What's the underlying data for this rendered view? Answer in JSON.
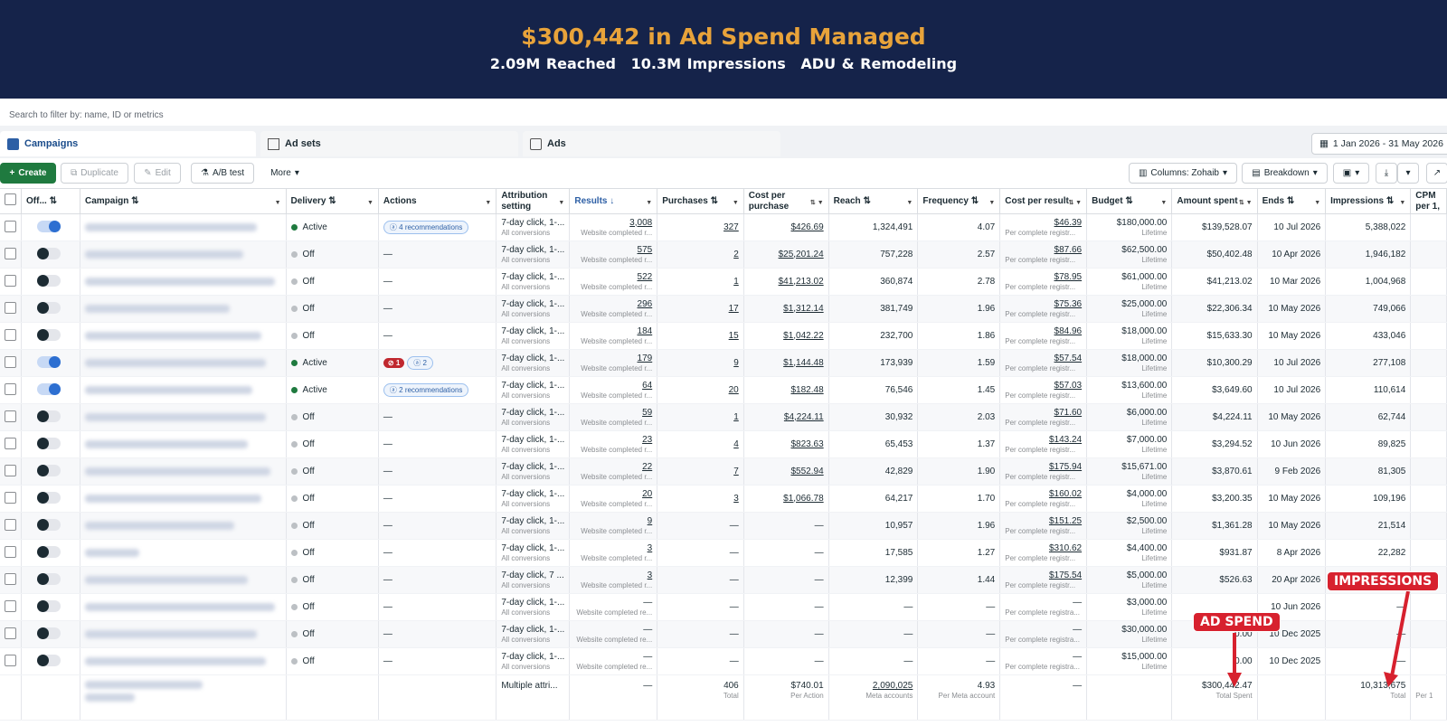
{
  "banner": {
    "title": "$300,442 in Ad Spend Managed",
    "reached": "2.09M Reached",
    "impressions": "10.3M Impressions",
    "niche": "ADU & Remodeling"
  },
  "filter": {
    "placeholder": "Search to filter by: name, ID or metrics"
  },
  "tabs": {
    "campaigns": "Campaigns",
    "adsets": "Ad sets",
    "ads": "Ads"
  },
  "date_range": "1 Jan 2026 - 31 May 2026",
  "toolbar": {
    "create": "Create",
    "duplicate": "Duplicate",
    "edit": "Edit",
    "abtest": "A/B test",
    "more": "More",
    "columns": "Columns: Zohaib",
    "breakdown": "Breakdown"
  },
  "columns": {
    "off": "Off...",
    "campaign": "Campaign",
    "delivery": "Delivery",
    "actions": "Actions",
    "attribution": "Attribution setting",
    "results": "Results",
    "purchases": "Purchases",
    "cpp": "Cost per purchase",
    "reach": "Reach",
    "frequency": "Frequency",
    "cpr": "Cost per result",
    "budget": "Budget",
    "spent": "Amount spent",
    "ends": "Ends",
    "impressions": "Impressions",
    "cpm": "CPM per 1,"
  },
  "common": {
    "all_conversions": "All conversions",
    "website_completed": "Website completed r...",
    "website_completed_re": "Website completed re...",
    "per_complete": "Per complete registr...",
    "per_complete_a": "Per complete registra...",
    "lifetime": "Lifetime",
    "dash": "—"
  },
  "rows": [
    {
      "on": true,
      "status": "Active",
      "action": "4 recommendations",
      "attr": "7-day click, 1-...",
      "results": "3,008",
      "purch": "327",
      "cpp": "$426.69",
      "reach": "1,324,491",
      "freq": "4.07",
      "cpr": "$46.39",
      "budget": "$180,000.00",
      "spent": "$139,528.07",
      "ends": "10 Jul 2026",
      "impr": "5,388,022"
    },
    {
      "on": false,
      "status": "Off",
      "action": "",
      "attr": "7-day click, 1-...",
      "results": "575",
      "purch": "2",
      "cpp": "$25,201.24",
      "reach": "757,228",
      "freq": "2.57",
      "cpr": "$87.66",
      "budget": "$62,500.00",
      "spent": "$50,402.48",
      "ends": "10 Apr 2026",
      "impr": "1,946,182"
    },
    {
      "on": false,
      "status": "Off",
      "action": "",
      "attr": "7-day click, 1-...",
      "results": "522",
      "purch": "1",
      "cpp": "$41,213.02",
      "reach": "360,874",
      "freq": "2.78",
      "cpr": "$78.95",
      "budget": "$61,000.00",
      "spent": "$41,213.02",
      "ends": "10 Mar 2026",
      "impr": "1,004,968"
    },
    {
      "on": false,
      "status": "Off",
      "action": "",
      "attr": "7-day click, 1-...",
      "results": "296",
      "purch": "17",
      "cpp": "$1,312.14",
      "reach": "381,749",
      "freq": "1.96",
      "cpr": "$75.36",
      "budget": "$25,000.00",
      "spent": "$22,306.34",
      "ends": "10 May 2026",
      "impr": "749,066"
    },
    {
      "on": false,
      "status": "Off",
      "action": "",
      "attr": "7-day click, 1-...",
      "results": "184",
      "purch": "15",
      "cpp": "$1,042.22",
      "reach": "232,700",
      "freq": "1.86",
      "cpr": "$84.96",
      "budget": "$18,000.00",
      "spent": "$15,633.30",
      "ends": "10 May 2026",
      "impr": "433,046"
    },
    {
      "on": true,
      "status": "Active",
      "action": "err",
      "attr": "7-day click, 1-...",
      "results": "179",
      "purch": "9",
      "cpp": "$1,144.48",
      "reach": "173,939",
      "freq": "1.59",
      "cpr": "$57.54",
      "budget": "$18,000.00",
      "spent": "$10,300.29",
      "ends": "10 Jul 2026",
      "impr": "277,108"
    },
    {
      "on": true,
      "status": "Active",
      "action": "2 recommendations",
      "attr": "7-day click, 1-...",
      "results": "64",
      "purch": "20",
      "cpp": "$182.48",
      "reach": "76,546",
      "freq": "1.45",
      "cpr": "$57.03",
      "budget": "$13,600.00",
      "spent": "$3,649.60",
      "ends": "10 Jul 2026",
      "impr": "110,614"
    },
    {
      "on": false,
      "status": "Off",
      "action": "",
      "attr": "7-day click, 1-...",
      "results": "59",
      "purch": "1",
      "cpp": "$4,224.11",
      "reach": "30,932",
      "freq": "2.03",
      "cpr": "$71.60",
      "budget": "$6,000.00",
      "spent": "$4,224.11",
      "ends": "10 May 2026",
      "impr": "62,744"
    },
    {
      "on": false,
      "status": "Off",
      "action": "",
      "attr": "7-day click, 1-...",
      "results": "23",
      "purch": "4",
      "cpp": "$823.63",
      "reach": "65,453",
      "freq": "1.37",
      "cpr": "$143.24",
      "budget": "$7,000.00",
      "spent": "$3,294.52",
      "ends": "10 Jun 2026",
      "impr": "89,825"
    },
    {
      "on": false,
      "status": "Off",
      "action": "",
      "attr": "7-day click, 1-...",
      "results": "22",
      "purch": "7",
      "cpp": "$552.94",
      "reach": "42,829",
      "freq": "1.90",
      "cpr": "$175.94",
      "budget": "$15,671.00",
      "spent": "$3,870.61",
      "ends": "9 Feb 2026",
      "impr": "81,305"
    },
    {
      "on": false,
      "status": "Off",
      "action": "",
      "attr": "7-day click, 1-...",
      "results": "20",
      "purch": "3",
      "cpp": "$1,066.78",
      "reach": "64,217",
      "freq": "1.70",
      "cpr": "$160.02",
      "budget": "$4,000.00",
      "spent": "$3,200.35",
      "ends": "10 May 2026",
      "impr": "109,196"
    },
    {
      "on": false,
      "status": "Off",
      "action": "",
      "attr": "7-day click, 1-...",
      "results": "9",
      "purch": "—",
      "cpp": "—",
      "reach": "10,957",
      "freq": "1.96",
      "cpr": "$151.25",
      "budget": "$2,500.00",
      "spent": "$1,361.28",
      "ends": "10 May 2026",
      "impr": "21,514"
    },
    {
      "on": false,
      "status": "Off",
      "action": "",
      "attr": "7-day click, 1-...",
      "results": "3",
      "purch": "—",
      "cpp": "—",
      "reach": "17,585",
      "freq": "1.27",
      "cpr": "$310.62",
      "budget": "$4,400.00",
      "spent": "$931.87",
      "ends": "8 Apr 2026",
      "impr": "22,282"
    },
    {
      "on": false,
      "status": "Off",
      "action": "",
      "attr": "7-day click, 7 ...",
      "results": "3",
      "purch": "—",
      "cpp": "—",
      "reach": "12,399",
      "freq": "1.44",
      "cpr": "$175.54",
      "budget": "$5,000.00",
      "spent": "$526.63",
      "ends": "20 Apr 2026",
      "impr": ""
    },
    {
      "on": false,
      "status": "Off",
      "action": "",
      "attr": "7-day click, 1-...",
      "results": "—",
      "purch": "—",
      "cpp": "—",
      "reach": "—",
      "freq": "—",
      "cpr": "—",
      "budget": "$3,000.00",
      "spent": "",
      "ends": "10 Jun 2026",
      "impr": "—"
    },
    {
      "on": false,
      "status": "Off",
      "action": "",
      "attr": "7-day click, 1-...",
      "results": "—",
      "purch": "—",
      "cpp": "—",
      "reach": "—",
      "freq": "—",
      "cpr": "—",
      "budget": "$30,000.00",
      "spent": "0.00",
      "ends": "10 Dec 2025",
      "impr": "—"
    },
    {
      "on": false,
      "status": "Off",
      "action": "",
      "attr": "7-day click, 1-...",
      "results": "—",
      "purch": "—",
      "cpp": "—",
      "reach": "—",
      "freq": "—",
      "cpr": "—",
      "budget": "$15,000.00",
      "spent": "0.00",
      "ends": "10 Dec 2025",
      "impr": "—"
    }
  ],
  "totals": {
    "attr": "Multiple attri...",
    "results": "—",
    "purch": "406",
    "purch_sub": "Total",
    "cpp": "$740.01",
    "cpp_sub": "Per Action",
    "reach": "2,090,025",
    "reach_sub": "Meta accounts",
    "freq": "4.93",
    "freq_sub": "Per Meta account",
    "cpr": "—",
    "spent": "$300,442.47",
    "spent_sub": "Total Spent",
    "impr": "10,313,675",
    "impr_sub": "Total",
    "cpm_sub": "Per 1"
  },
  "callouts": {
    "spend": "AD SPEND",
    "impressions": "IMPRESSIONS"
  }
}
